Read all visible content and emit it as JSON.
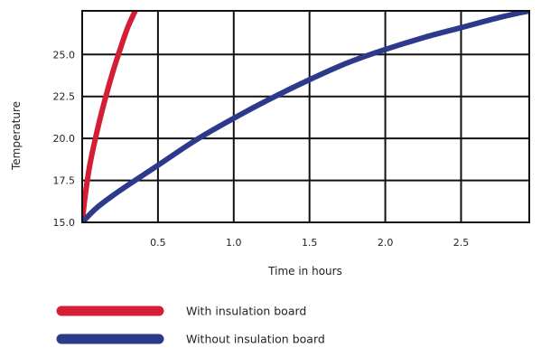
{
  "chart_data": {
    "type": "line",
    "xlabel": "Time in hours",
    "ylabel": "Temperature",
    "xlim": [
      0,
      2.95
    ],
    "ylim": [
      15.0,
      27.6
    ],
    "x_ticks": [
      0.5,
      1.0,
      1.5,
      2.0,
      2.5
    ],
    "x_tick_labels": [
      "0.5",
      "1.0",
      "1.5",
      "2.0",
      "2.5"
    ],
    "y_ticks": [
      15.0,
      17.5,
      20.0,
      22.5,
      25.0
    ],
    "y_tick_labels": [
      "15.0",
      "17.5",
      "20.0",
      "22.5",
      "25.0"
    ],
    "grid": true,
    "legend_position": "bottom",
    "series": [
      {
        "name": "With insulation board",
        "color": "#d41e36",
        "x": [
          0,
          0.02,
          0.05,
          0.1,
          0.15,
          0.2,
          0.25,
          0.3,
          0.35
        ],
        "y": [
          15.0,
          16.6,
          18.4,
          20.5,
          22.3,
          23.9,
          25.3,
          26.6,
          27.6
        ]
      },
      {
        "name": "Without insulation board",
        "color": "#2d3a8c",
        "x": [
          0,
          0.1,
          0.25,
          0.5,
          0.75,
          1.0,
          1.25,
          1.5,
          1.75,
          2.0,
          2.25,
          2.5,
          2.75,
          2.95
        ],
        "y": [
          15.0,
          15.9,
          16.9,
          18.4,
          19.9,
          21.2,
          22.4,
          23.5,
          24.5,
          25.3,
          26.0,
          26.6,
          27.2,
          27.6
        ]
      }
    ]
  }
}
